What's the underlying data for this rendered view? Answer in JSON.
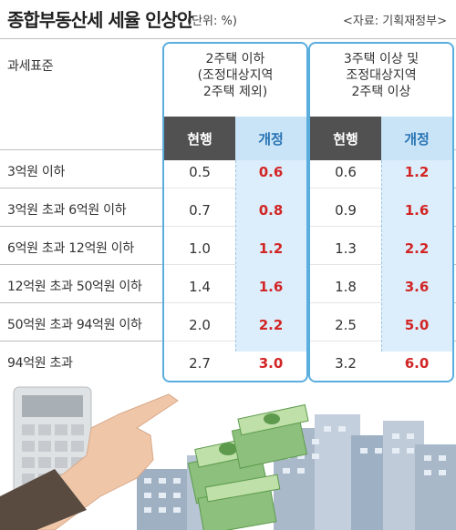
{
  "title": "종합부동산세 세율 인상안",
  "unit": "(단위: %)",
  "source": "<자료: 기획재정부>",
  "row_header": "과세표준",
  "groups": [
    {
      "title": "2주택 이하\n(조정대상지역\n2주택 제외)",
      "current_label": "현행",
      "revised_label": "개정"
    },
    {
      "title": "3주택 이상 및\n조정대상지역\n2주택 이상",
      "current_label": "현행",
      "revised_label": "개정"
    }
  ],
  "rows": [
    {
      "label": "3억원 이하",
      "g1_cur": "0.5",
      "g1_rev": "0.6",
      "g2_cur": "0.6",
      "g2_rev": "1.2"
    },
    {
      "label": "3억원 초과 6억원 이하",
      "g1_cur": "0.7",
      "g1_rev": "0.8",
      "g2_cur": "0.9",
      "g2_rev": "1.6"
    },
    {
      "label": "6억원 초과 12억원 이하",
      "g1_cur": "1.0",
      "g1_rev": "1.2",
      "g2_cur": "1.3",
      "g2_rev": "2.2"
    },
    {
      "label": "12억원 초과 50억원 이하",
      "g1_cur": "1.4",
      "g1_rev": "1.6",
      "g2_cur": "1.8",
      "g2_rev": "3.6"
    },
    {
      "label": "50억원 초과 94억원 이하",
      "g1_cur": "2.0",
      "g1_rev": "2.2",
      "g2_cur": "2.5",
      "g2_rev": "5.0"
    },
    {
      "label": "94억원 초과",
      "g1_cur": "2.7",
      "g1_rev": "3.0",
      "g2_cur": "3.2",
      "g2_rev": "6.0"
    }
  ],
  "colors": {
    "box_border": "#5aaede",
    "revised_value": "#d22525",
    "current_header": "#515151",
    "revised_header": "#c9e4f6"
  },
  "illustration": {
    "icons": [
      "calculator-icon",
      "pointing-hand-icon",
      "money-stack-icon",
      "apartment-buildings-icon"
    ]
  }
}
